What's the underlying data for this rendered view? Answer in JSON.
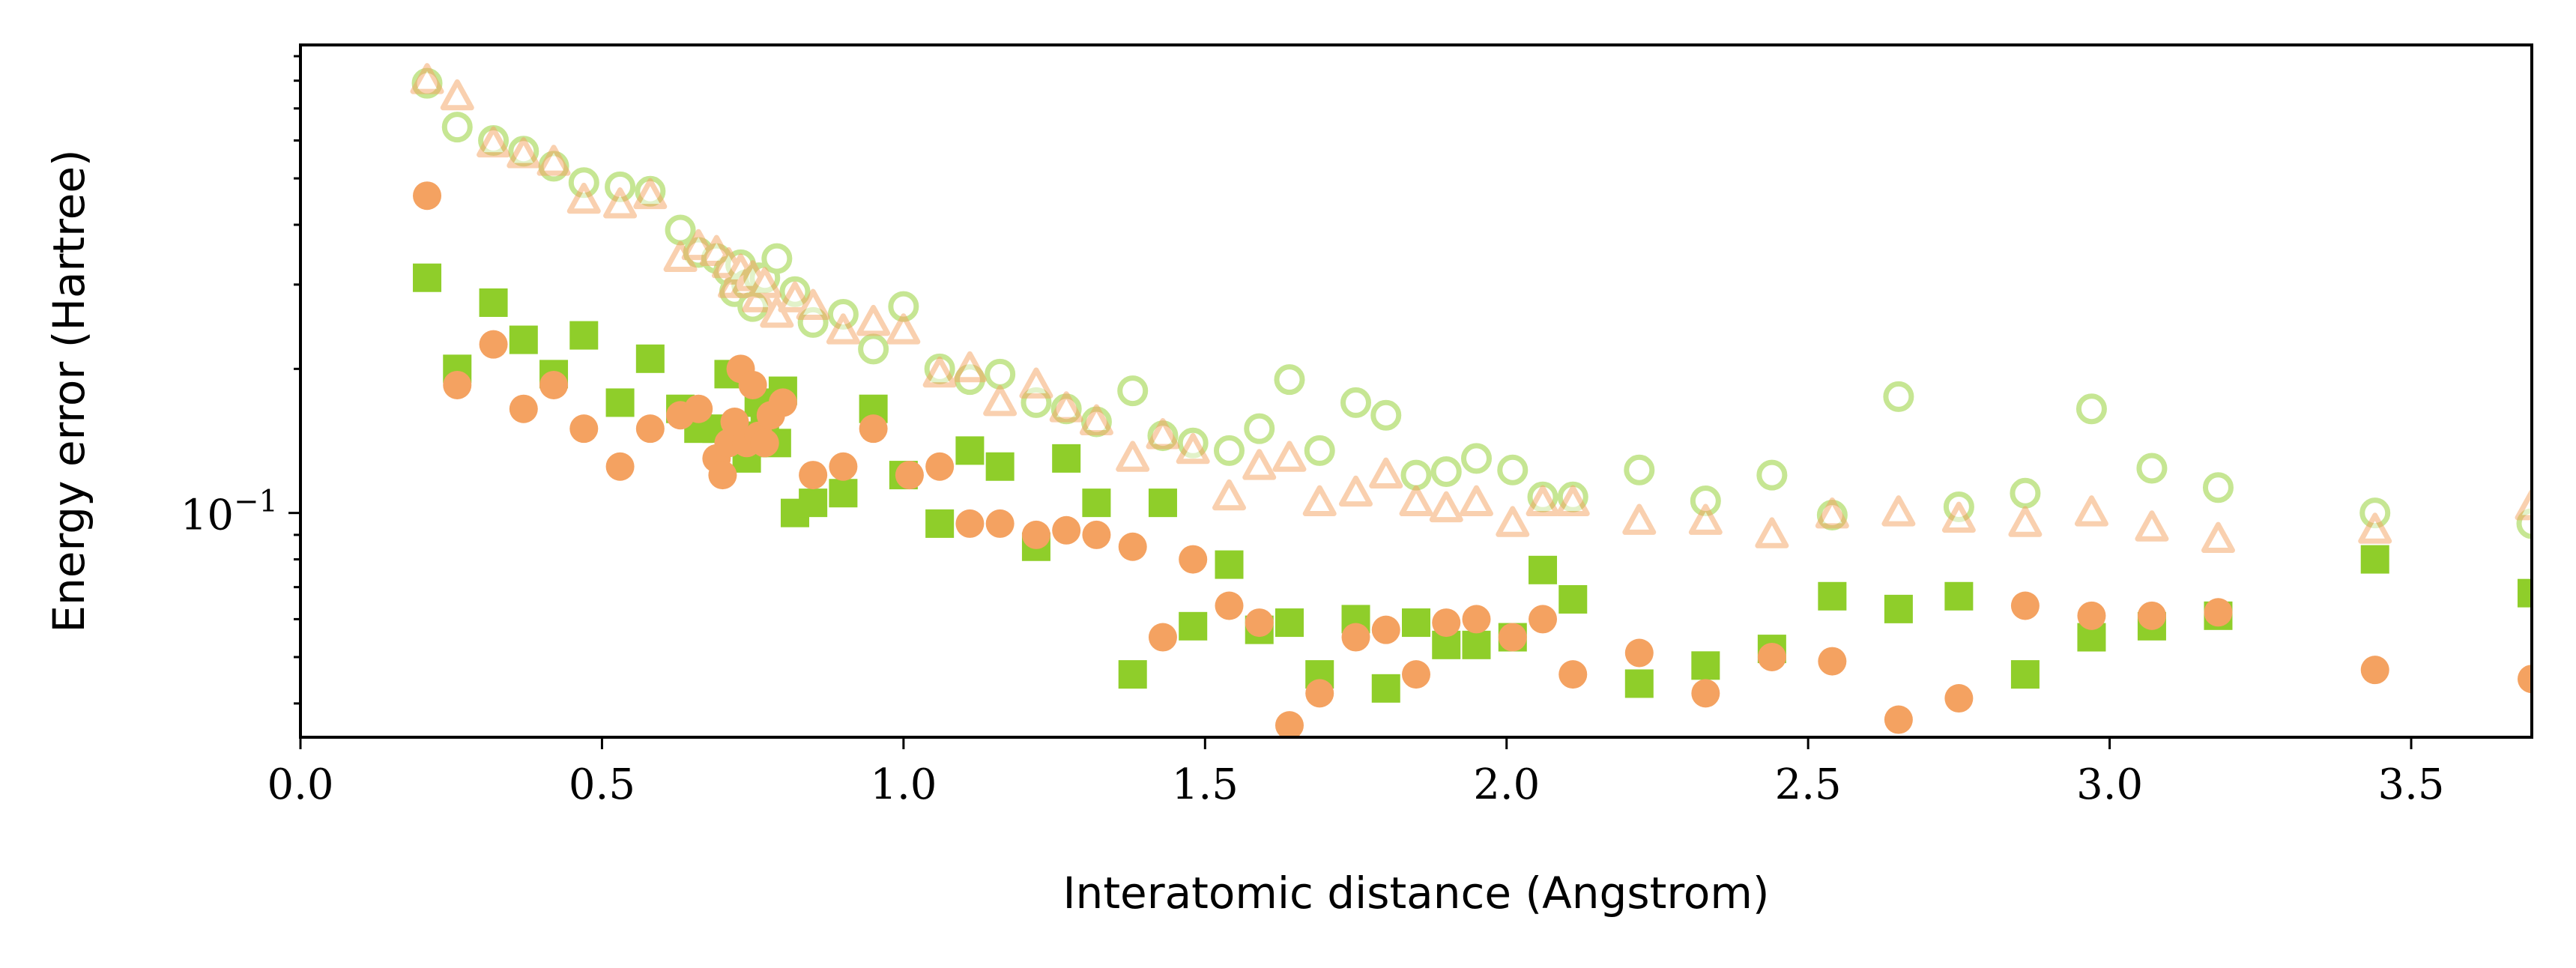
{
  "chart_data": {
    "type": "scatter",
    "xlabel": "Interatomic distance (Angstrom)",
    "ylabel": "Energy error (Hartree)",
    "xlim": [
      0.0,
      3.7
    ],
    "ylim": [
      0.034,
      0.95
    ],
    "y_scale": "log",
    "x_ticks": [
      "0.0",
      "0.5",
      "1.0",
      "1.5",
      "2.0",
      "2.5",
      "3.0",
      "3.5"
    ],
    "x_tick_values": [
      0.0,
      0.5,
      1.0,
      1.5,
      2.0,
      2.5,
      3.0,
      3.5
    ],
    "y_major_ticks": [
      0.1
    ],
    "y_major_tick_labels": [
      "10",
      "−1"
    ],
    "grid": false,
    "colors": {
      "green": "#8fce2a",
      "orange": "#f4a261"
    },
    "series": [
      {
        "marker": "square",
        "color": "#8fce2a",
        "opacity": 1.0,
        "x": [
          0.21,
          0.26,
          0.32,
          0.37,
          0.42,
          0.47,
          0.53,
          0.58,
          0.63,
          0.66,
          0.69,
          0.71,
          0.73,
          0.74,
          0.75,
          0.76,
          0.77,
          0.79,
          0.8,
          0.82,
          0.85,
          0.9,
          0.95,
          1.0,
          1.06,
          1.11,
          1.16,
          1.22,
          1.27,
          1.32,
          1.38,
          1.43,
          1.48,
          1.54,
          1.59,
          1.64,
          1.69,
          1.75,
          1.8,
          1.85,
          1.9,
          1.95,
          2.01,
          2.06,
          2.11,
          2.22,
          2.33,
          2.44,
          2.54,
          2.65,
          2.75,
          2.86,
          2.97,
          3.07,
          3.18,
          3.44,
          3.7
        ],
        "y": [
          0.31,
          0.2,
          0.275,
          0.23,
          0.195,
          0.235,
          0.17,
          0.21,
          0.165,
          0.15,
          0.15,
          0.195,
          0.145,
          0.13,
          0.14,
          0.17,
          0.155,
          0.14,
          0.18,
          0.1,
          0.105,
          0.11,
          0.165,
          0.12,
          0.095,
          0.135,
          0.125,
          0.085,
          0.13,
          0.105,
          0.046,
          0.105,
          0.058,
          0.078,
          0.057,
          0.059,
          0.046,
          0.06,
          0.043,
          0.059,
          0.053,
          0.053,
          0.055,
          0.076,
          0.066,
          0.044,
          0.048,
          0.052,
          0.067,
          0.063,
          0.067,
          0.046,
          0.055,
          0.058,
          0.061,
          0.08,
          0.068
        ]
      },
      {
        "marker": "circle",
        "color": "#f4a261",
        "opacity": 1.0,
        "x": [
          0.21,
          0.26,
          0.32,
          0.37,
          0.42,
          0.47,
          0.53,
          0.58,
          0.63,
          0.66,
          0.69,
          0.7,
          0.71,
          0.72,
          0.73,
          0.74,
          0.75,
          0.76,
          0.77,
          0.78,
          0.8,
          0.85,
          0.9,
          0.95,
          1.01,
          1.06,
          1.11,
          1.16,
          1.22,
          1.27,
          1.32,
          1.38,
          1.43,
          1.48,
          1.54,
          1.59,
          1.64,
          1.69,
          1.75,
          1.8,
          1.85,
          1.9,
          1.95,
          2.01,
          2.06,
          2.11,
          2.22,
          2.33,
          2.44,
          2.54,
          2.65,
          2.75,
          2.86,
          2.97,
          3.07,
          3.18,
          3.44,
          3.7
        ],
        "y": [
          0.46,
          0.185,
          0.225,
          0.165,
          0.185,
          0.15,
          0.125,
          0.15,
          0.16,
          0.165,
          0.13,
          0.12,
          0.14,
          0.155,
          0.2,
          0.14,
          0.185,
          0.145,
          0.14,
          0.16,
          0.17,
          0.12,
          0.125,
          0.15,
          0.12,
          0.125,
          0.095,
          0.095,
          0.09,
          0.092,
          0.09,
          0.085,
          0.055,
          0.08,
          0.064,
          0.059,
          0.036,
          0.042,
          0.055,
          0.057,
          0.046,
          0.059,
          0.06,
          0.055,
          0.06,
          0.046,
          0.051,
          0.042,
          0.05,
          0.049,
          0.037,
          0.041,
          0.064,
          0.061,
          0.061,
          0.062,
          0.047,
          0.045
        ]
      },
      {
        "marker": "circle-hollow",
        "color": "#8fce2a",
        "opacity": 0.5,
        "x": [
          0.21,
          0.26,
          0.32,
          0.37,
          0.42,
          0.47,
          0.53,
          0.58,
          0.63,
          0.66,
          0.69,
          0.71,
          0.72,
          0.73,
          0.74,
          0.75,
          0.76,
          0.77,
          0.79,
          0.82,
          0.85,
          0.9,
          0.95,
          1.0,
          1.06,
          1.11,
          1.16,
          1.22,
          1.27,
          1.32,
          1.38,
          1.43,
          1.48,
          1.54,
          1.59,
          1.64,
          1.69,
          1.75,
          1.8,
          1.85,
          1.9,
          1.95,
          2.01,
          2.06,
          2.11,
          2.22,
          2.33,
          2.44,
          2.54,
          2.65,
          2.75,
          2.86,
          2.97,
          3.07,
          3.18,
          3.44,
          3.7
        ],
        "y": [
          0.79,
          0.64,
          0.6,
          0.57,
          0.53,
          0.49,
          0.48,
          0.47,
          0.39,
          0.35,
          0.34,
          0.32,
          0.29,
          0.33,
          0.3,
          0.27,
          0.31,
          0.31,
          0.34,
          0.29,
          0.25,
          0.26,
          0.22,
          0.27,
          0.2,
          0.19,
          0.195,
          0.17,
          0.165,
          0.155,
          0.18,
          0.145,
          0.14,
          0.135,
          0.15,
          0.19,
          0.135,
          0.17,
          0.16,
          0.12,
          0.122,
          0.13,
          0.123,
          0.108,
          0.108,
          0.123,
          0.106,
          0.12,
          0.099,
          0.175,
          0.103,
          0.11,
          0.165,
          0.124,
          0.113,
          0.1,
          0.095
        ]
      },
      {
        "marker": "triangle-hollow",
        "color": "#f4a261",
        "opacity": 0.5,
        "x": [
          0.21,
          0.26,
          0.32,
          0.37,
          0.42,
          0.47,
          0.53,
          0.58,
          0.63,
          0.66,
          0.69,
          0.71,
          0.72,
          0.73,
          0.74,
          0.75,
          0.76,
          0.77,
          0.79,
          0.82,
          0.85,
          0.9,
          0.95,
          1.0,
          1.06,
          1.11,
          1.16,
          1.22,
          1.27,
          1.32,
          1.38,
          1.43,
          1.48,
          1.54,
          1.59,
          1.64,
          1.69,
          1.75,
          1.8,
          1.85,
          1.9,
          1.95,
          2.01,
          2.06,
          2.11,
          2.22,
          2.33,
          2.44,
          2.54,
          2.65,
          2.75,
          2.86,
          2.97,
          3.07,
          3.18,
          3.44,
          3.7
        ],
        "y": [
          0.8,
          0.74,
          0.59,
          0.56,
          0.54,
          0.45,
          0.44,
          0.46,
          0.34,
          0.36,
          0.35,
          0.33,
          0.3,
          0.32,
          0.3,
          0.31,
          0.28,
          0.3,
          0.26,
          0.28,
          0.27,
          0.24,
          0.25,
          0.24,
          0.195,
          0.2,
          0.17,
          0.185,
          0.165,
          0.155,
          0.13,
          0.145,
          0.135,
          0.108,
          0.125,
          0.13,
          0.105,
          0.11,
          0.12,
          0.105,
          0.102,
          0.105,
          0.095,
          0.105,
          0.105,
          0.096,
          0.096,
          0.09,
          0.099,
          0.1,
          0.097,
          0.095,
          0.1,
          0.093,
          0.088,
          0.092,
          0.103
        ]
      }
    ]
  }
}
